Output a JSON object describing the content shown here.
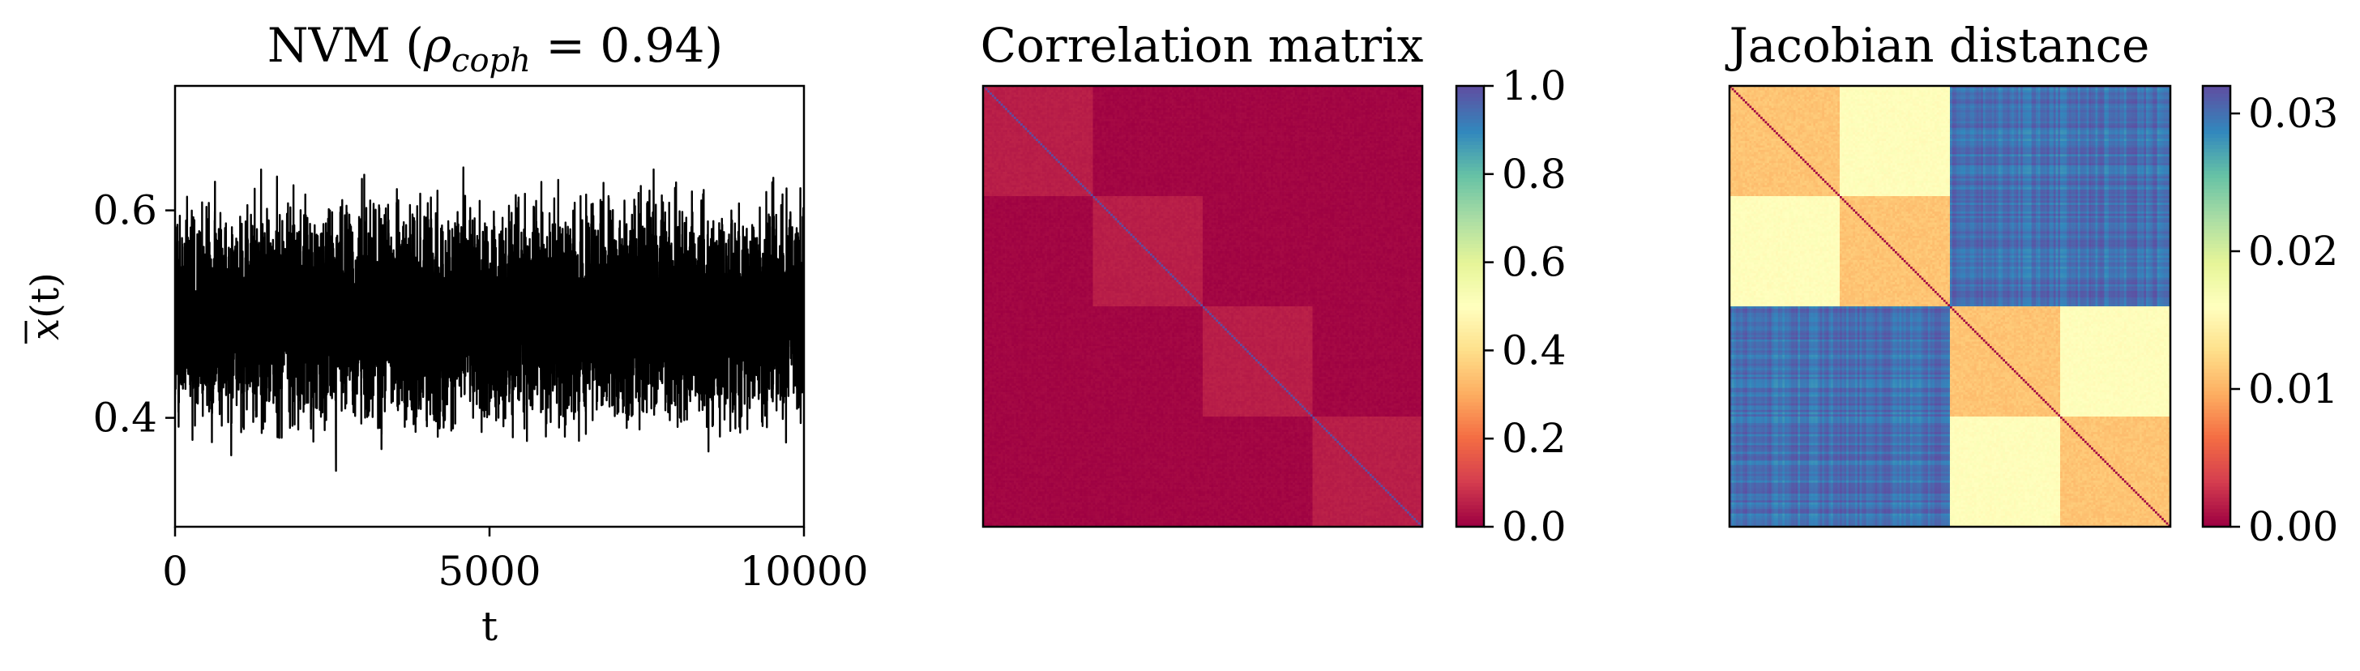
{
  "chart_data": [
    {
      "type": "line",
      "title": "NVM (",
      "title_symbol": "ρ",
      "title_subscript": "coph",
      "title_value": " = 0.94)",
      "xlabel": "t",
      "ylabel_symbol": "x",
      "ylabel_suffix": "(t)",
      "xlim": [
        0,
        10000
      ],
      "ylim": [
        0.295,
        0.72
      ],
      "xticks": [
        0,
        5000,
        10000
      ],
      "xtick_labels": [
        "0",
        "5000",
        "10000"
      ],
      "yticks": [
        0.4,
        0.6
      ],
      "ytick_labels": [
        "0.4",
        "0.6"
      ],
      "mean": 0.5,
      "envelope_min": 0.32,
      "envelope_max": 0.69,
      "n_points": 10000,
      "line_color": "#000000",
      "grid": false
    },
    {
      "type": "heatmap",
      "title": "Correlation matrix",
      "n": 200,
      "blocks": [
        [
          0,
          50
        ],
        [
          50,
          100
        ],
        [
          100,
          150
        ],
        [
          150,
          200
        ]
      ],
      "diagonal_value": 1.0,
      "within_block_value": 0.04,
      "between_block_value": 0.0,
      "colormap": "Spectral",
      "clim": [
        0.0,
        1.0
      ],
      "colorbar_ticks": [
        0.0,
        0.2,
        0.4,
        0.6,
        0.8,
        1.0
      ],
      "colorbar_tick_labels": [
        "0.0",
        "0.2",
        "0.4",
        "0.6",
        "0.8",
        "1.0"
      ],
      "axes_ticks_visible": false
    },
    {
      "type": "heatmap",
      "title": "Jacobian distance",
      "n": 200,
      "groups": [
        [
          0,
          100
        ],
        [
          100,
          200
        ]
      ],
      "blocks": [
        [
          0,
          50
        ],
        [
          50,
          100
        ],
        [
          100,
          150
        ],
        [
          150,
          200
        ]
      ],
      "diagonal_value": 0.0,
      "same_block_value": 0.011,
      "same_group_other_block_value": 0.016,
      "between_group_value": 0.03,
      "colormap": "Spectral_r",
      "clim": [
        0.0,
        0.032
      ],
      "colorbar_ticks": [
        0.0,
        0.01,
        0.02,
        0.03
      ],
      "colorbar_tick_labels": [
        "0.00",
        "0.01",
        "0.02",
        "0.03"
      ],
      "axes_ticks_visible": false
    }
  ]
}
